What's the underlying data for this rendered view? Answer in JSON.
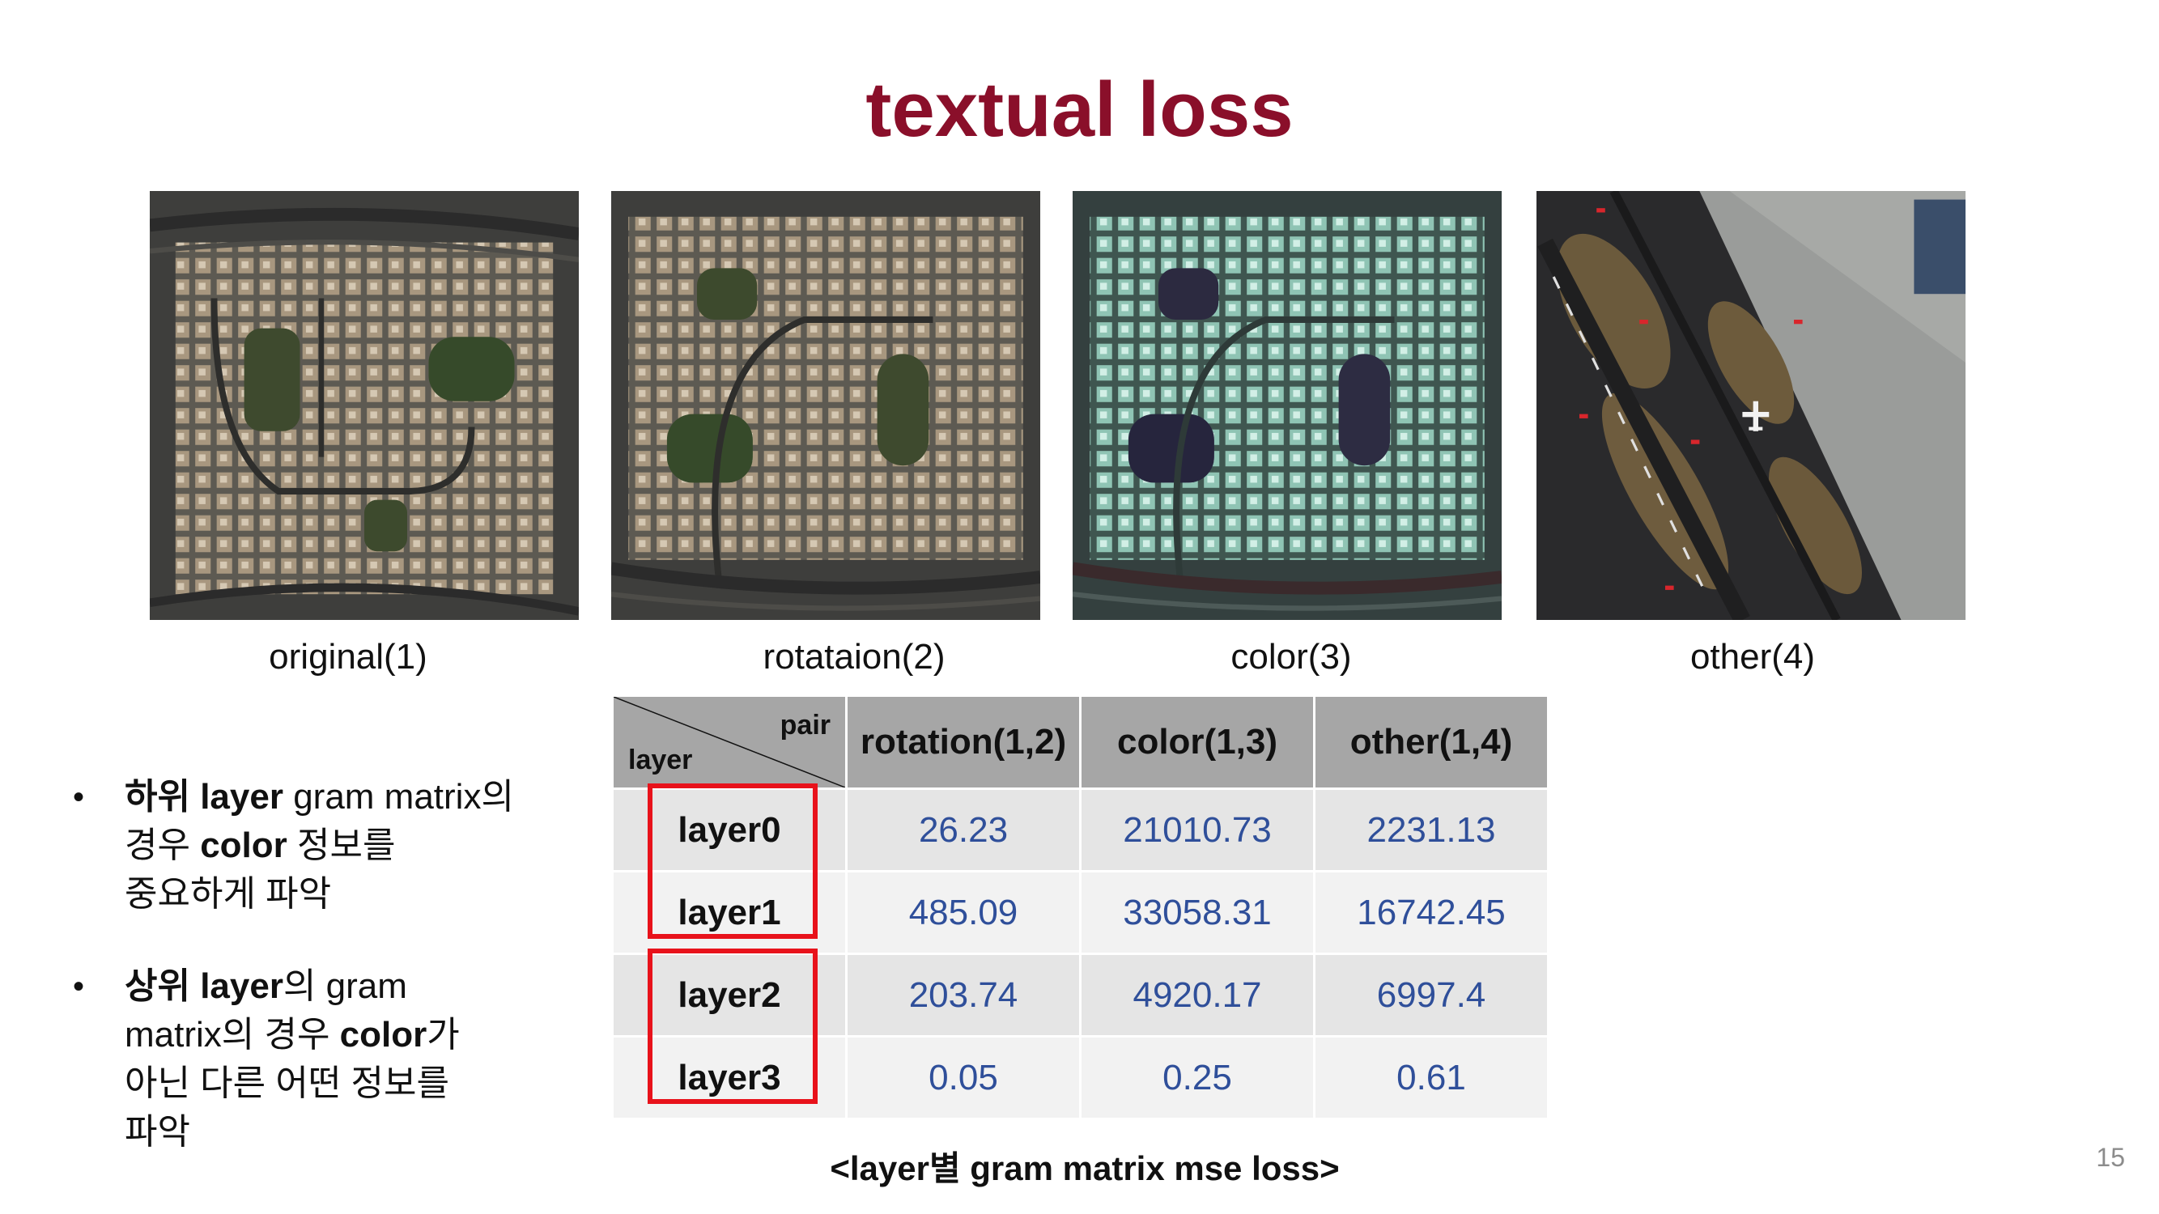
{
  "title": "textual loss",
  "images": [
    {
      "caption": "original(1)"
    },
    {
      "caption": "rotataion(2)"
    },
    {
      "caption": "color(3)"
    },
    {
      "caption": "other(4)"
    }
  ],
  "table": {
    "corner_top": "pair",
    "corner_bottom": "layer",
    "columns": [
      "rotation(1,2)",
      "color(1,3)",
      "other(1,4)"
    ],
    "rows": [
      {
        "label": "layer0",
        "values": [
          "26.23",
          "21010.73",
          "2231.13"
        ]
      },
      {
        "label": "layer1",
        "values": [
          "485.09",
          "33058.31",
          "16742.45"
        ]
      },
      {
        "label": "layer2",
        "values": [
          "203.74",
          "4920.17",
          "6997.4"
        ]
      },
      {
        "label": "layer3",
        "values": [
          "0.05",
          "0.25",
          "0.61"
        ]
      }
    ],
    "caption": "<layer별 gram matrix mse loss>"
  },
  "bullets": [
    {
      "marker": "•",
      "b1": "하위",
      "t1": " ",
      "b2": "layer",
      "t2": " gram matrix의",
      "line2a": "경우 ",
      "line2b": "color",
      "line2c": " 정보를",
      "line3": "중요하게 파악"
    },
    {
      "marker": "•",
      "b1": "상위",
      "t1": " ",
      "b2": "layer",
      "t2": "의 gram",
      "line2a": "matrix의 경우 ",
      "line2b": "color",
      "line2c": "가",
      "line3": "아닌 다른 어떤 정보를",
      "line4": "파악"
    }
  ],
  "page_number": "15"
}
